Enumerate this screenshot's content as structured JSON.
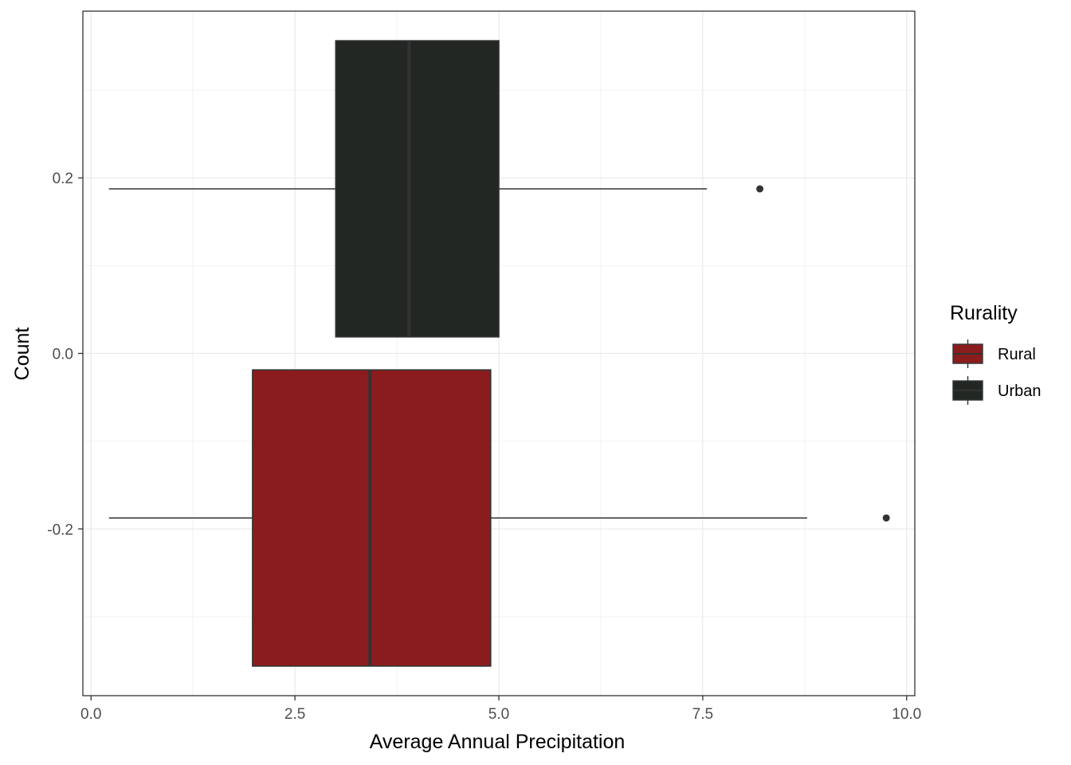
{
  "chart_data": {
    "type": "boxplot",
    "orientation": "horizontal",
    "xlabel": "Average Annual Precipitation",
    "ylabel": "Count",
    "xlim": [
      -0.1,
      10.1
    ],
    "ylim": [
      -0.39,
      0.39
    ],
    "x_ticks": [
      {
        "value": 0.0,
        "label": "0.0"
      },
      {
        "value": 2.5,
        "label": "2.5"
      },
      {
        "value": 5.0,
        "label": "5.0"
      },
      {
        "value": 7.5,
        "label": "7.5"
      },
      {
        "value": 10.0,
        "label": "10.0"
      }
    ],
    "y_ticks": [
      {
        "value": 0.2,
        "label": "0.2"
      },
      {
        "value": 0.0,
        "label": "0.0"
      },
      {
        "value": -0.2,
        "label": "-0.2"
      }
    ],
    "grid": true,
    "legend": {
      "title": "Rurality",
      "position": "right",
      "entries": [
        {
          "label": "Rural",
          "color": "#8b1c1e"
        },
        {
          "label": "Urban",
          "color": "#222723"
        }
      ]
    },
    "series": [
      {
        "name": "Urban",
        "color": "#222723",
        "y_center": 0.1875,
        "y_range": [
          0.0188,
          0.3563
        ],
        "whisker_low": 0.22,
        "q1": 3.0,
        "median": 3.9,
        "q3": 5.0,
        "whisker_high": 7.55,
        "outliers": [
          8.2
        ]
      },
      {
        "name": "Rural",
        "color": "#8b1c1e",
        "y_center": -0.1875,
        "y_range": [
          -0.3563,
          -0.0188
        ],
        "whisker_low": 0.22,
        "q1": 1.98,
        "median": 3.42,
        "q3": 4.9,
        "whisker_high": 8.78,
        "outliers": [
          9.75
        ]
      }
    ]
  }
}
